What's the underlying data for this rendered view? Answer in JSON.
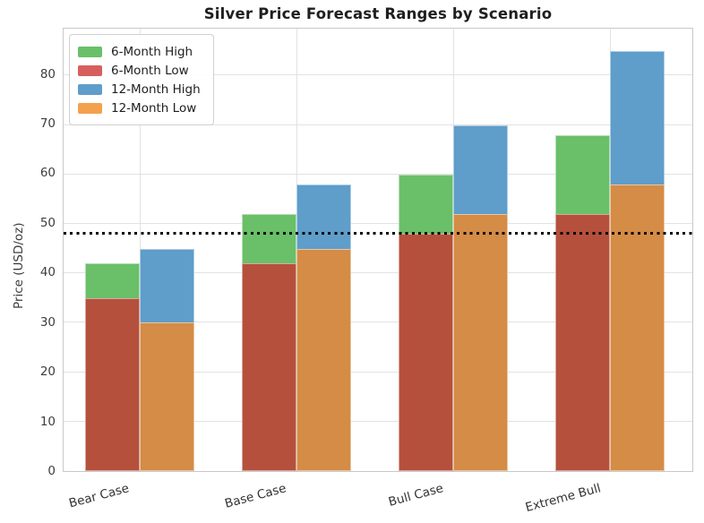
{
  "chart_data": {
    "type": "bar",
    "title": "Silver Price Forecast Ranges by Scenario",
    "ylabel": "Price (USD/oz)",
    "xlabel": "",
    "categories": [
      "Bear Case",
      "Base Case",
      "Bull Case",
      "Extreme Bull"
    ],
    "series": [
      {
        "name": "6-Month High",
        "period": "6-month",
        "role": "high",
        "color": "#6abf69",
        "legend_color": "#6abf69",
        "values": [
          42,
          52,
          60,
          68
        ]
      },
      {
        "name": "6-Month Low",
        "period": "6-month",
        "role": "low",
        "color": "#b5503c",
        "legend_color": "#d65f5e",
        "values": [
          35,
          42,
          48,
          52
        ]
      },
      {
        "name": "12-Month High",
        "period": "12-month",
        "role": "high",
        "color": "#5f9dca",
        "legend_color": "#5f9dca",
        "values": [
          45,
          58,
          70,
          85
        ]
      },
      {
        "name": "12-Month Low",
        "period": "12-month",
        "role": "low",
        "color": "#d48c46",
        "legend_color": "#f4a14d",
        "values": [
          30,
          45,
          52,
          58
        ]
      }
    ],
    "reference_line": {
      "value": 48,
      "color": "#000000",
      "style": "dotted"
    },
    "yticks": [
      0,
      10,
      20,
      30,
      40,
      50,
      60,
      70,
      80
    ],
    "ylim": [
      0,
      89.5
    ],
    "grid": true,
    "legend_position": "upper left",
    "axis_text_color": "#3d3d3d",
    "grid_color": "#e2e2e2",
    "spine_color": "#c9c9c9"
  }
}
